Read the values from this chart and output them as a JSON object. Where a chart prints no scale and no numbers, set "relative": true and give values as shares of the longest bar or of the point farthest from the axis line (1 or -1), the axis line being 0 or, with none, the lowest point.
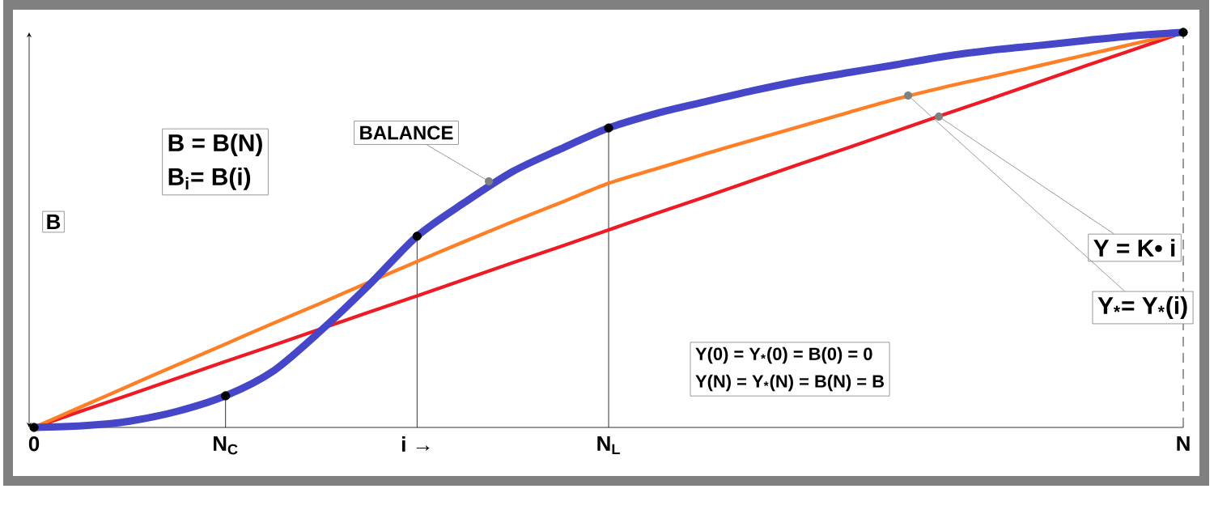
{
  "chart_data": {
    "type": "line",
    "relative": true,
    "ylabel": "B",
    "tick_labels": "x",
    "categories": [
      "0",
      null,
      null,
      null,
      "N$_{C}$",
      null,
      null,
      null,
      "i →",
      null,
      null,
      null,
      "N$_{L}$",
      null,
      null,
      null,
      null,
      null,
      null,
      null,
      null,
      null,
      null,
      null,
      "N"
    ],
    "series": [
      {
        "color": "#ed1c24",
        "values": [
          0,
          0.042,
          0.083,
          0.125,
          0.167,
          0.208,
          0.25,
          0.292,
          0.333,
          0.375,
          0.417,
          0.458,
          0.5,
          0.542,
          0.583,
          0.625,
          0.667,
          0.708,
          0.75,
          0.792,
          0.833,
          0.875,
          0.917,
          0.958,
          1
        ]
      },
      {
        "color": "#ff7f27",
        "values": [
          0,
          0.053,
          0.106,
          0.159,
          0.211,
          0.264,
          0.315,
          0.368,
          0.42,
          0.471,
          0.521,
          0.569,
          0.618,
          0.655,
          0.692,
          0.727,
          0.762,
          0.797,
          0.831,
          0.861,
          0.888,
          0.916,
          0.944,
          0.972,
          1
        ]
      },
      {
        "color": "#4646c8",
        "values": [
          0,
          0.004,
          0.016,
          0.041,
          0.08,
          0.143,
          0.246,
          0.361,
          0.484,
          0.57,
          0.648,
          0.705,
          0.758,
          0.795,
          0.824,
          0.852,
          0.877,
          0.898,
          0.918,
          0.939,
          0.955,
          0.967,
          0.98,
          0.992,
          1
        ]
      },
      {
        "type": "scatter",
        "color": "#000000",
        "marker": "circle",
        "values": [
          0,
          null,
          null,
          null,
          0.08,
          null,
          null,
          null,
          0.484,
          null,
          null,
          null,
          0.758,
          null,
          null,
          null,
          null,
          null,
          null,
          null,
          null,
          null,
          null,
          null,
          1
        ]
      }
    ],
    "annotations": [
      "B = B(N)",
      "B$_{i}$= B(i)",
      "BALANCE",
      "Y = K• i",
      "Y$_{*}$= Y$_{*}$(i)",
      "Y(0)  =  Y$_{*}$(0) = B(0) = 0",
      "Y(N) = Y$_{*}$(N) = B(N) = B"
    ]
  }
}
